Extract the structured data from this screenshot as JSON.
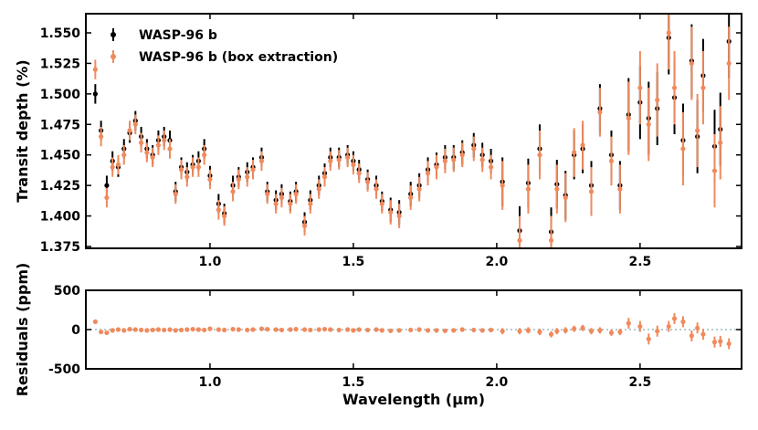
{
  "chart_data": [
    {
      "type": "errorbar",
      "ylabel": "Transit depth (%)",
      "x": [
        0.6,
        0.62,
        0.64,
        0.66,
        0.68,
        0.7,
        0.72,
        0.74,
        0.76,
        0.78,
        0.8,
        0.82,
        0.84,
        0.86,
        0.88,
        0.9,
        0.92,
        0.94,
        0.96,
        0.98,
        1.0,
        1.03,
        1.05,
        1.08,
        1.1,
        1.13,
        1.15,
        1.18,
        1.2,
        1.23,
        1.25,
        1.28,
        1.3,
        1.33,
        1.35,
        1.38,
        1.4,
        1.42,
        1.45,
        1.48,
        1.5,
        1.52,
        1.55,
        1.58,
        1.6,
        1.63,
        1.66,
        1.7,
        1.73,
        1.76,
        1.79,
        1.82,
        1.85,
        1.88,
        1.92,
        1.95,
        1.98,
        2.02,
        2.08,
        2.11,
        2.15,
        2.19,
        2.21,
        2.24,
        2.27,
        2.3,
        2.33,
        2.36,
        2.4,
        2.43,
        2.46,
        2.5,
        2.53,
        2.56,
        2.6,
        2.62,
        2.65,
        2.68,
        2.7,
        2.72,
        2.76,
        2.78,
        2.81
      ],
      "series": [
        {
          "name": "WASP-96 b",
          "color": "#000000",
          "values": [
            1.5,
            1.47,
            1.425,
            1.445,
            1.44,
            1.455,
            1.468,
            1.478,
            1.465,
            1.455,
            1.45,
            1.462,
            1.465,
            1.462,
            1.42,
            1.44,
            1.436,
            1.442,
            1.445,
            1.455,
            1.433,
            1.41,
            1.402,
            1.425,
            1.432,
            1.436,
            1.44,
            1.448,
            1.42,
            1.413,
            1.418,
            1.412,
            1.42,
            1.395,
            1.413,
            1.425,
            1.435,
            1.448,
            1.448,
            1.45,
            1.445,
            1.438,
            1.43,
            1.425,
            1.412,
            1.405,
            1.403,
            1.418,
            1.425,
            1.438,
            1.442,
            1.448,
            1.448,
            1.452,
            1.458,
            1.45,
            1.445,
            1.428,
            1.388,
            1.427,
            1.455,
            1.387,
            1.426,
            1.417,
            1.45,
            1.455,
            1.425,
            1.488,
            1.45,
            1.425,
            1.483,
            1.493,
            1.48,
            1.488,
            1.546,
            1.497,
            1.462,
            1.527,
            1.465,
            1.515,
            1.457,
            1.471,
            1.543
          ],
          "errors": [
            0.008,
            0.008,
            0.008,
            0.008,
            0.008,
            0.008,
            0.008,
            0.008,
            0.008,
            0.008,
            0.008,
            0.008,
            0.008,
            0.008,
            0.008,
            0.008,
            0.008,
            0.008,
            0.008,
            0.008,
            0.008,
            0.008,
            0.008,
            0.008,
            0.008,
            0.008,
            0.008,
            0.008,
            0.008,
            0.008,
            0.008,
            0.008,
            0.008,
            0.008,
            0.008,
            0.008,
            0.008,
            0.008,
            0.008,
            0.008,
            0.008,
            0.008,
            0.008,
            0.008,
            0.008,
            0.01,
            0.01,
            0.01,
            0.01,
            0.01,
            0.01,
            0.01,
            0.01,
            0.01,
            0.01,
            0.01,
            0.01,
            0.02,
            0.02,
            0.02,
            0.02,
            0.02,
            0.02,
            0.02,
            0.02,
            0.02,
            0.02,
            0.02,
            0.02,
            0.02,
            0.03,
            0.03,
            0.03,
            0.03,
            0.03,
            0.03,
            0.03,
            0.03,
            0.03,
            0.03,
            0.03,
            0.03,
            0.03
          ]
        },
        {
          "name": "WASP-96 b (box extraction)",
          "color": "#f08a5d",
          "values": [
            1.52,
            1.465,
            1.415,
            1.44,
            1.442,
            1.45,
            1.47,
            1.475,
            1.46,
            1.452,
            1.448,
            1.458,
            1.462,
            1.455,
            1.418,
            1.438,
            1.432,
            1.44,
            1.44,
            1.45,
            1.43,
            1.405,
            1.4,
            1.42,
            1.43,
            1.432,
            1.438,
            1.445,
            1.418,
            1.41,
            1.415,
            1.41,
            1.418,
            1.392,
            1.41,
            1.422,
            1.432,
            1.445,
            1.446,
            1.448,
            1.442,
            1.435,
            1.428,
            1.422,
            1.41,
            1.403,
            1.4,
            1.415,
            1.422,
            1.435,
            1.44,
            1.445,
            1.446,
            1.45,
            1.455,
            1.446,
            1.44,
            1.425,
            1.38,
            1.422,
            1.45,
            1.38,
            1.422,
            1.415,
            1.452,
            1.458,
            1.42,
            1.485,
            1.445,
            1.422,
            1.48,
            1.505,
            1.475,
            1.495,
            1.55,
            1.505,
            1.455,
            1.525,
            1.47,
            1.505,
            1.437,
            1.46,
            1.525
          ],
          "errors": [
            0.008,
            0.008,
            0.008,
            0.008,
            0.008,
            0.008,
            0.008,
            0.008,
            0.008,
            0.008,
            0.008,
            0.008,
            0.008,
            0.008,
            0.008,
            0.008,
            0.008,
            0.008,
            0.008,
            0.008,
            0.008,
            0.008,
            0.008,
            0.008,
            0.008,
            0.008,
            0.008,
            0.008,
            0.008,
            0.008,
            0.008,
            0.008,
            0.008,
            0.008,
            0.008,
            0.008,
            0.008,
            0.008,
            0.008,
            0.008,
            0.008,
            0.008,
            0.008,
            0.008,
            0.008,
            0.01,
            0.01,
            0.01,
            0.01,
            0.01,
            0.01,
            0.01,
            0.01,
            0.01,
            0.01,
            0.01,
            0.01,
            0.02,
            0.02,
            0.02,
            0.02,
            0.02,
            0.02,
            0.02,
            0.02,
            0.02,
            0.02,
            0.02,
            0.02,
            0.02,
            0.03,
            0.03,
            0.03,
            0.03,
            0.03,
            0.03,
            0.03,
            0.03,
            0.03,
            0.03,
            0.03,
            0.03,
            0.03
          ]
        }
      ],
      "xlim": [
        0.567,
        2.854
      ],
      "ylim": [
        1.3735,
        1.5657
      ],
      "xticks": [
        {
          "value": 1,
          "label": "1.0"
        },
        1.5,
        {
          "value": 2,
          "label": "2.0"
        },
        2.5
      ],
      "yticks": [
        {
          "value": 1.375,
          "label": "1.375"
        },
        {
          "value": 1.4,
          "label": "1.400"
        },
        {
          "value": 1.425,
          "label": "1.425"
        },
        {
          "value": 1.45,
          "label": "1.450"
        },
        {
          "value": 1.475,
          "label": "1.475"
        },
        {
          "value": 1.5,
          "label": "1.500"
        },
        {
          "value": 1.525,
          "label": "1.525"
        },
        {
          "value": 1.55,
          "label": "1.550"
        }
      ],
      "legend": "upper left"
    },
    {
      "type": "errorbar",
      "xlabel": "Wavelength (μm)",
      "ylabel": "Residuals (ppm)",
      "x": [
        0.6,
        0.62,
        0.64,
        0.66,
        0.68,
        0.7,
        0.72,
        0.74,
        0.76,
        0.78,
        0.8,
        0.82,
        0.84,
        0.86,
        0.88,
        0.9,
        0.92,
        0.94,
        0.96,
        0.98,
        1.0,
        1.03,
        1.05,
        1.08,
        1.1,
        1.13,
        1.15,
        1.18,
        1.2,
        1.23,
        1.25,
        1.28,
        1.3,
        1.33,
        1.35,
        1.38,
        1.4,
        1.42,
        1.45,
        1.48,
        1.5,
        1.52,
        1.55,
        1.58,
        1.6,
        1.63,
        1.66,
        1.7,
        1.73,
        1.76,
        1.79,
        1.82,
        1.85,
        1.88,
        1.92,
        1.95,
        1.98,
        2.02,
        2.08,
        2.11,
        2.15,
        2.19,
        2.21,
        2.24,
        2.27,
        2.3,
        2.33,
        2.36,
        2.4,
        2.43,
        2.46,
        2.5,
        2.53,
        2.56,
        2.6,
        2.62,
        2.65,
        2.68,
        2.7,
        2.72,
        2.76,
        2.78,
        2.81
      ],
      "series": [
        {
          "color": "#f08a5d",
          "values": [
            100,
            -30,
            -40,
            -10,
            0,
            -10,
            5,
            0,
            -5,
            -10,
            -5,
            0,
            -5,
            0,
            -10,
            -5,
            0,
            5,
            0,
            -5,
            10,
            0,
            -5,
            5,
            0,
            -5,
            0,
            10,
            5,
            0,
            -5,
            0,
            5,
            0,
            -5,
            0,
            5,
            0,
            -5,
            0,
            -10,
            0,
            -5,
            0,
            -10,
            -15,
            -10,
            -5,
            0,
            -10,
            -10,
            -15,
            -10,
            0,
            -5,
            -10,
            -5,
            -20,
            -20,
            -10,
            -30,
            -60,
            -20,
            -10,
            10,
            20,
            -20,
            -10,
            -40,
            -30,
            80,
            40,
            -120,
            -20,
            40,
            140,
            100,
            -80,
            20,
            -60,
            -160,
            -150,
            -180
          ],
          "errors": [
            20,
            20,
            20,
            20,
            20,
            20,
            20,
            20,
            20,
            20,
            20,
            20,
            20,
            20,
            20,
            20,
            20,
            20,
            20,
            20,
            20,
            20,
            20,
            20,
            20,
            20,
            20,
            20,
            20,
            20,
            20,
            20,
            20,
            20,
            20,
            20,
            20,
            20,
            20,
            20,
            20,
            20,
            20,
            20,
            20,
            20,
            20,
            20,
            20,
            20,
            20,
            20,
            20,
            20,
            20,
            20,
            20,
            40,
            40,
            40,
            40,
            40,
            40,
            40,
            40,
            40,
            40,
            40,
            40,
            40,
            70,
            70,
            70,
            70,
            70,
            70,
            70,
            70,
            70,
            70,
            70,
            70,
            70
          ]
        }
      ],
      "xlim": [
        0.567,
        2.854
      ],
      "ylim": [
        -500,
        500
      ],
      "xticks": [
        {
          "value": 1,
          "label": "1.0"
        },
        1.5,
        {
          "value": 2,
          "label": "2.0"
        },
        2.5
      ],
      "yticks": [
        -500,
        0,
        500
      ],
      "zero_line": true
    }
  ]
}
